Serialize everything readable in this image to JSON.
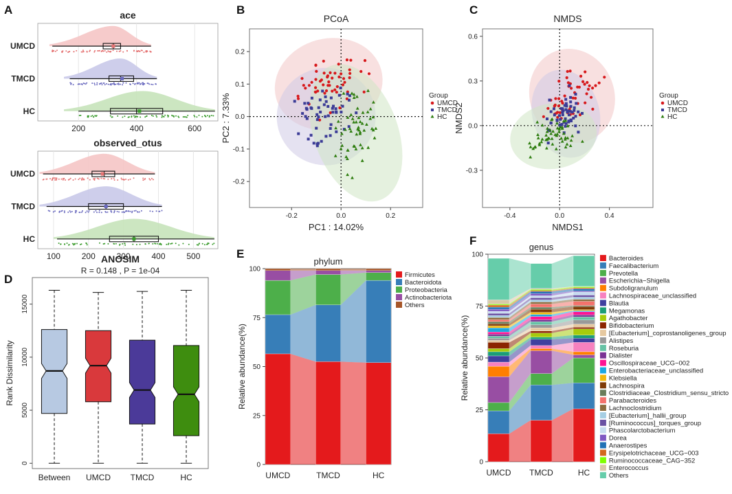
{
  "panels": [
    {
      "letter": "A",
      "kind": "raincloud",
      "title": "ace",
      "xticks": [
        200,
        400,
        600
      ],
      "xlim": [
        60,
        680
      ],
      "groups": [
        {
          "name": "UMCD",
          "color": "#e57373",
          "fill": "#f4c2c2",
          "whisker": [
            110,
            450
          ],
          "q1": 285,
          "median": 320,
          "q3": 345,
          "mean": 320,
          "kde_range": [
            100,
            450
          ],
          "kde_peak": 320
        },
        {
          "name": "TMCD",
          "color": "#6a6abf",
          "fill": "#c5c5e8",
          "whisker": [
            170,
            470
          ],
          "q1": 305,
          "median": 345,
          "q3": 390,
          "mean": 350,
          "kde_range": [
            150,
            470
          ],
          "kde_peak": 345
        },
        {
          "name": "HC",
          "color": "#3a9b2c",
          "fill": "#c3e2b6",
          "whisker": [
            200,
            670
          ],
          "q1": 310,
          "median": 400,
          "q3": 490,
          "mean": 410,
          "kde_range": [
            150,
            670
          ],
          "kde_peak": 420
        }
      ]
    },
    {
      "letter": "",
      "kind": "raincloud",
      "title": "observed_otus",
      "xticks": [
        100,
        200,
        300,
        400,
        500
      ],
      "xlim": [
        55,
        570
      ],
      "groups": [
        {
          "name": "UMCD",
          "color": "#e57373",
          "fill": "#f4c2c2",
          "whisker": [
            70,
            390
          ],
          "q1": 210,
          "median": 245,
          "q3": 275,
          "mean": 240,
          "kde_range": [
            60,
            390
          ],
          "kde_peak": 245
        },
        {
          "name": "TMCD",
          "color": "#6a6abf",
          "fill": "#c5c5e8",
          "whisker": [
            80,
            410
          ],
          "q1": 200,
          "median": 250,
          "q3": 300,
          "mean": 250,
          "kde_range": [
            60,
            410
          ],
          "kde_peak": 250
        },
        {
          "name": "HC",
          "color": "#3a9b2c",
          "fill": "#c3e2b6",
          "whisker": [
            110,
            560
          ],
          "q1": 260,
          "median": 330,
          "q3": 400,
          "mean": 330,
          "kde_range": [
            100,
            560
          ],
          "kde_peak": 330
        }
      ]
    },
    {
      "letter": "B",
      "kind": "scatter",
      "title": "PCoA",
      "xlabel": "PC1 : 14.02%",
      "ylabel": "PC2 : 7.33%",
      "xticks": [
        -0.2,
        0.0,
        0.2
      ],
      "yticks": [
        -0.2,
        -0.1,
        0.0,
        0.1,
        0.2
      ],
      "xlim": [
        -0.37,
        0.33
      ],
      "ylim": [
        -0.28,
        0.27
      ],
      "legend_title": "Group",
      "legend": [
        "UMCD",
        "TMCD",
        "HC"
      ],
      "ellipses": [
        {
          "group": "UMCD",
          "cx": -0.05,
          "cy": 0.1,
          "rx": 0.22,
          "ry": 0.14,
          "angle": -15
        },
        {
          "group": "TMCD",
          "cx": -0.06,
          "cy": 0.0,
          "rx": 0.2,
          "ry": 0.15,
          "angle": -10
        },
        {
          "group": "HC",
          "cx": 0.06,
          "cy": -0.05,
          "rx": 0.17,
          "ry": 0.22,
          "angle": -20
        }
      ]
    },
    {
      "letter": "C",
      "kind": "scatter",
      "title": "NMDS",
      "xlabel": "NMDS1",
      "ylabel": "NMDS2",
      "xticks": [
        -0.4,
        0.0,
        0.4
      ],
      "yticks": [
        -0.3,
        0.0,
        0.3,
        0.6
      ],
      "xlim": [
        -0.62,
        0.75
      ],
      "ylim": [
        -0.55,
        0.65
      ],
      "legend_title": "Group",
      "legend": [
        "UMCD",
        "TMCD",
        "HC"
      ],
      "ellipses": [
        {
          "group": "UMCD",
          "cx": 0.1,
          "cy": 0.2,
          "rx": 0.34,
          "ry": 0.32,
          "angle": -20
        },
        {
          "group": "TMCD",
          "cx": 0.05,
          "cy": 0.08,
          "rx": 0.27,
          "ry": 0.3,
          "angle": -15
        },
        {
          "group": "HC",
          "cx": -0.05,
          "cy": -0.07,
          "rx": 0.35,
          "ry": 0.22,
          "angle": -10
        }
      ]
    },
    {
      "letter": "D",
      "kind": "boxplot",
      "title": "ANOSIM",
      "subtitle": "R =  0.148 ,  P =  1e-04",
      "ylabel": "Rank Dissimilarity",
      "yticks": [
        0,
        5000,
        10000,
        15000
      ],
      "ylim": [
        -500,
        17500
      ],
      "boxes": [
        {
          "name": "Between",
          "color": "#b7c9e2",
          "min": 0,
          "q1": 4700,
          "median": 8700,
          "q3": 12600,
          "max": 16300
        },
        {
          "name": "UMCD",
          "color": "#d9393c",
          "min": 0,
          "q1": 5800,
          "median": 9200,
          "q3": 12500,
          "max": 16100
        },
        {
          "name": "TMCD",
          "color": "#4b3a99",
          "min": 0,
          "q1": 3700,
          "median": 6900,
          "q3": 11600,
          "max": 16200
        },
        {
          "name": "HC",
          "color": "#3e8d0f",
          "min": 0,
          "q1": 2600,
          "median": 6500,
          "q3": 11100,
          "max": 16300
        }
      ]
    },
    {
      "letter": "E",
      "kind": "stacked",
      "title": "phylum",
      "ylabel": "Relative abundance(%)",
      "yticks": [
        0,
        25,
        50,
        75,
        100
      ],
      "categories": [
        "UMCD",
        "TMCD",
        "HC"
      ],
      "series": [
        {
          "name": "Firmicutes",
          "color": "#e41a1c",
          "values": [
            56.5,
            52.5,
            52.0
          ]
        },
        {
          "name": "Bacteroidota",
          "color": "#377eb8",
          "values": [
            20.0,
            29.0,
            42.0
          ]
        },
        {
          "name": "Proteobacteria",
          "color": "#4daf4a",
          "values": [
            17.5,
            15.5,
            4.0
          ]
        },
        {
          "name": "Actinobacteriota",
          "color": "#984ea3",
          "values": [
            5.0,
            2.0,
            1.0
          ]
        },
        {
          "name": "Others",
          "color": "#a65628",
          "values": [
            1.0,
            1.0,
            1.0
          ]
        }
      ]
    },
    {
      "letter": "F",
      "kind": "stacked",
      "title": "genus",
      "ylabel": "Relative abundance(%)",
      "yticks": [
        0,
        25,
        50,
        75,
        100
      ],
      "categories": [
        "UMCD",
        "TMCD",
        "HC"
      ],
      "series": [
        {
          "name": "Bacteroides",
          "color": "#e41a1c",
          "values": [
            13.5,
            20.0,
            25.5
          ]
        },
        {
          "name": "Faecalibacterium",
          "color": "#377eb8",
          "values": [
            11.0,
            17.0,
            12.5
          ]
        },
        {
          "name": "Prevotella",
          "color": "#4daf4a",
          "values": [
            4.0,
            5.5,
            12.0
          ]
        },
        {
          "name": "Escherichia−Shigella",
          "color": "#984ea3",
          "values": [
            12.5,
            11.0,
            1.5
          ]
        },
        {
          "name": "Subdoligranulum",
          "color": "#ff7f00",
          "values": [
            5.0,
            1.0,
            1.5
          ]
        },
        {
          "name": "Lachnospiraceae_unclassified",
          "color": "#f781bf",
          "values": [
            2.0,
            1.5,
            4.5
          ]
        },
        {
          "name": "Blautia",
          "color": "#3f3f9f",
          "values": [
            3.0,
            3.0,
            2.0
          ]
        },
        {
          "name": "Megamonas",
          "color": "#1b9e77",
          "values": [
            2.0,
            1.0,
            1.5
          ]
        },
        {
          "name": "Agathobacter",
          "color": "#a6cc0c",
          "values": [
            1.5,
            2.0,
            3.0
          ]
        },
        {
          "name": "Bifidobacterium",
          "color": "#8b2500",
          "values": [
            3.0,
            1.0,
            0.8
          ]
        },
        {
          "name": "[Eubacterium]_coprostanoligenes_group",
          "color": "#e6c9a0",
          "values": [
            1.0,
            1.5,
            1.5
          ]
        },
        {
          "name": "Alistipes",
          "color": "#999999",
          "values": [
            1.0,
            1.5,
            2.0
          ]
        },
        {
          "name": "Roseburia",
          "color": "#66c2a5",
          "values": [
            1.0,
            1.5,
            1.5
          ]
        },
        {
          "name": "Dialister",
          "color": "#7b3294",
          "values": [
            1.0,
            1.0,
            1.0
          ]
        },
        {
          "name": "Oscillospiraceae_UCG−002",
          "color": "#ff1493",
          "values": [
            1.0,
            1.5,
            1.5
          ]
        },
        {
          "name": "Enterobacteriaceae_unclassified",
          "color": "#1ca7e0",
          "values": [
            2.0,
            1.0,
            0.5
          ]
        },
        {
          "name": "Klebsiella",
          "color": "#f2b90c",
          "values": [
            1.0,
            1.0,
            0.5
          ]
        },
        {
          "name": "Lachnospira",
          "color": "#7f3b08",
          "values": [
            1.0,
            1.5,
            1.5
          ]
        },
        {
          "name": "Clostridiaceae_Clostridium_sensu_stricto",
          "color": "#6a7d5a",
          "values": [
            1.0,
            1.0,
            0.5
          ]
        },
        {
          "name": "Parabacteroides",
          "color": "#f4726c",
          "values": [
            1.0,
            1.5,
            2.0
          ]
        },
        {
          "name": "Lachnoclostridium",
          "color": "#8c6d3f",
          "values": [
            1.0,
            1.0,
            1.0
          ]
        },
        {
          "name": "[Eubacterium]_hallii_group",
          "color": "#a6cee3",
          "values": [
            1.0,
            1.0,
            1.0
          ]
        },
        {
          "name": "[Ruminococcus]_torques_group",
          "color": "#6a51a3",
          "values": [
            1.0,
            1.0,
            1.0
          ]
        },
        {
          "name": "Phascolarctobacterium",
          "color": "#c6dbef",
          "values": [
            1.0,
            1.0,
            1.5
          ]
        },
        {
          "name": "Dorea",
          "color": "#7e57c2",
          "values": [
            1.0,
            1.0,
            0.5
          ]
        },
        {
          "name": "Anaerostipes",
          "color": "#2171b5",
          "values": [
            1.0,
            1.0,
            1.0
          ]
        },
        {
          "name": "Erysipelotrichaceae_UCG−003",
          "color": "#d2691e",
          "values": [
            1.0,
            0.5,
            0.5
          ]
        },
        {
          "name": "Ruminococcaceae_CAG−352",
          "color": "#7fff00",
          "values": [
            0.5,
            0.5,
            0.5
          ]
        },
        {
          "name": "Enterococcus",
          "color": "#d9c8a9",
          "values": [
            2.0,
            0.5,
            0.2
          ]
        },
        {
          "name": "Others",
          "color": "#66cdaa",
          "values": [
            20.0,
            12.0,
            14.8
          ]
        }
      ]
    }
  ],
  "chart_data": [
    {
      "type": "box",
      "title": "ace",
      "categories": [
        "UMCD",
        "TMCD",
        "HC"
      ],
      "medians": [
        320,
        345,
        400
      ],
      "xlim": [
        60,
        680
      ]
    },
    {
      "type": "box",
      "title": "observed_otus",
      "categories": [
        "UMCD",
        "TMCD",
        "HC"
      ],
      "medians": [
        245,
        250,
        330
      ],
      "xlim": [
        55,
        570
      ]
    },
    {
      "type": "scatter",
      "title": "PCoA",
      "xlabel": "PC1 : 14.02%",
      "ylabel": "PC2 : 7.33%",
      "series": [
        "UMCD",
        "TMCD",
        "HC"
      ],
      "xlim": [
        -0.37,
        0.33
      ],
      "ylim": [
        -0.28,
        0.27
      ]
    },
    {
      "type": "scatter",
      "title": "NMDS",
      "xlabel": "NMDS1",
      "ylabel": "NMDS2",
      "series": [
        "UMCD",
        "TMCD",
        "HC"
      ],
      "xlim": [
        -0.62,
        0.75
      ],
      "ylim": [
        -0.55,
        0.65
      ]
    },
    {
      "type": "box",
      "title": "ANOSIM",
      "subtitle": "R =  0.148 ,  P =  1e-04",
      "categories": [
        "Between",
        "UMCD",
        "TMCD",
        "HC"
      ],
      "medians": [
        8700,
        9200,
        6900,
        6500
      ]
    },
    {
      "type": "bar",
      "stacked": true,
      "title": "phylum",
      "categories": [
        "UMCD",
        "TMCD",
        "HC"
      ],
      "series": [
        {
          "name": "Firmicutes",
          "values": [
            56.5,
            52.5,
            52.0
          ]
        },
        {
          "name": "Bacteroidota",
          "values": [
            20.0,
            29.0,
            42.0
          ]
        },
        {
          "name": "Proteobacteria",
          "values": [
            17.5,
            15.5,
            4.0
          ]
        },
        {
          "name": "Actinobacteriota",
          "values": [
            5.0,
            2.0,
            1.0
          ]
        },
        {
          "name": "Others",
          "values": [
            1.0,
            1.0,
            1.0
          ]
        }
      ]
    },
    {
      "type": "bar",
      "stacked": true,
      "title": "genus",
      "categories": [
        "UMCD",
        "TMCD",
        "HC"
      ],
      "series": [
        {
          "name": "Bacteroides",
          "values": [
            13.5,
            20.0,
            25.5
          ]
        },
        {
          "name": "Faecalibacterium",
          "values": [
            11.0,
            17.0,
            12.5
          ]
        },
        {
          "name": "Prevotella",
          "values": [
            4.0,
            5.5,
            12.0
          ]
        },
        {
          "name": "Escherichia−Shigella",
          "values": [
            12.5,
            11.0,
            1.5
          ]
        },
        {
          "name": "Others",
          "values": [
            20.0,
            12.0,
            14.8
          ]
        }
      ]
    }
  ]
}
